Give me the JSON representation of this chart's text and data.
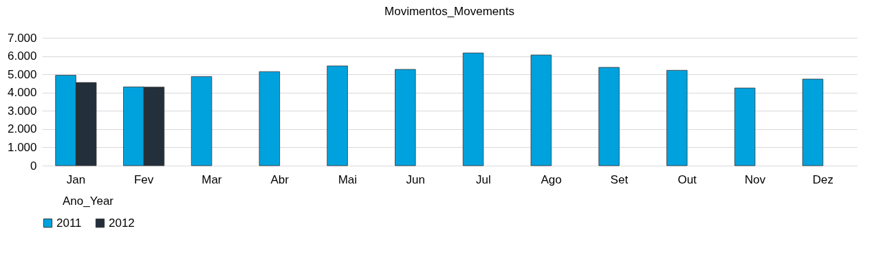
{
  "chart_data": {
    "type": "bar",
    "title": "Movimentos_Movements",
    "legend_title": "Ano_Year",
    "categories": [
      "Jan",
      "Fev",
      "Mar",
      "Abr",
      "Mai",
      "Jun",
      "Jul",
      "Ago",
      "Set",
      "Out",
      "Nov",
      "Dez"
    ],
    "series": [
      {
        "name": "2011",
        "color": "#00a2de",
        "values": [
          4950,
          4310,
          4880,
          5150,
          5460,
          5270,
          6170,
          6060,
          5380,
          5220,
          4250,
          4740
        ]
      },
      {
        "name": "2012",
        "color": "#232f3a",
        "values": [
          4550,
          4300,
          null,
          null,
          null,
          null,
          null,
          null,
          null,
          null,
          null,
          null
        ]
      }
    ],
    "ylim": [
      0,
      7000
    ],
    "yticks": [
      {
        "value": 0,
        "label": "0"
      },
      {
        "value": 1000,
        "label": "1.000"
      },
      {
        "value": 2000,
        "label": "2.000"
      },
      {
        "value": 3000,
        "label": "3.000"
      },
      {
        "value": 4000,
        "label": "4.000"
      },
      {
        "value": 5000,
        "label": "5.000"
      },
      {
        "value": 6000,
        "label": "6.000"
      },
      {
        "value": 7000,
        "label": "7.000"
      }
    ],
    "grid": "y",
    "legend": "bottom"
  }
}
